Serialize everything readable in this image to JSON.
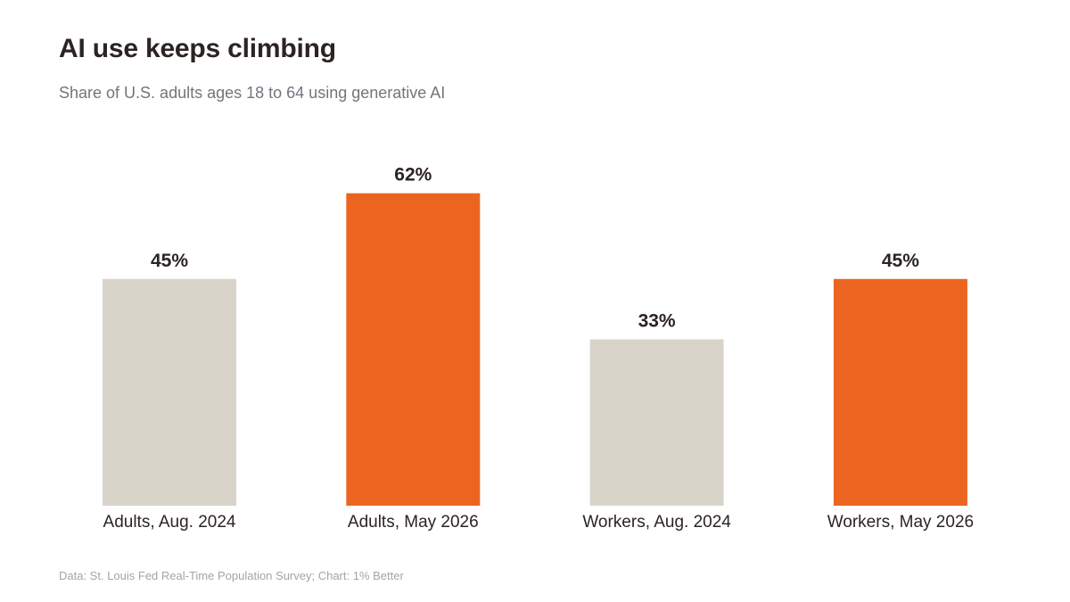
{
  "chart_data": {
    "type": "bar",
    "title": "AI use keeps climbing",
    "subtitle": "Share of U.S. adults ages 18 to 64 using generative AI",
    "source": "Data: St. Louis Fed Real-Time Population Survey; Chart: 1% Better",
    "categories": [
      "Adults, Aug. 2024",
      "Adults, May 2026",
      "Workers, Aug. 2024",
      "Workers, May 2026"
    ],
    "values": [
      45,
      62,
      33,
      45
    ],
    "value_labels": [
      "45%",
      "62%",
      "33%",
      "45%"
    ],
    "bar_colors": [
      "#d9d4ca",
      "#ec6520",
      "#d9d4ca",
      "#ec6520"
    ],
    "ylim": [
      0,
      100
    ],
    "grid": false,
    "y_axis_visible": false
  }
}
